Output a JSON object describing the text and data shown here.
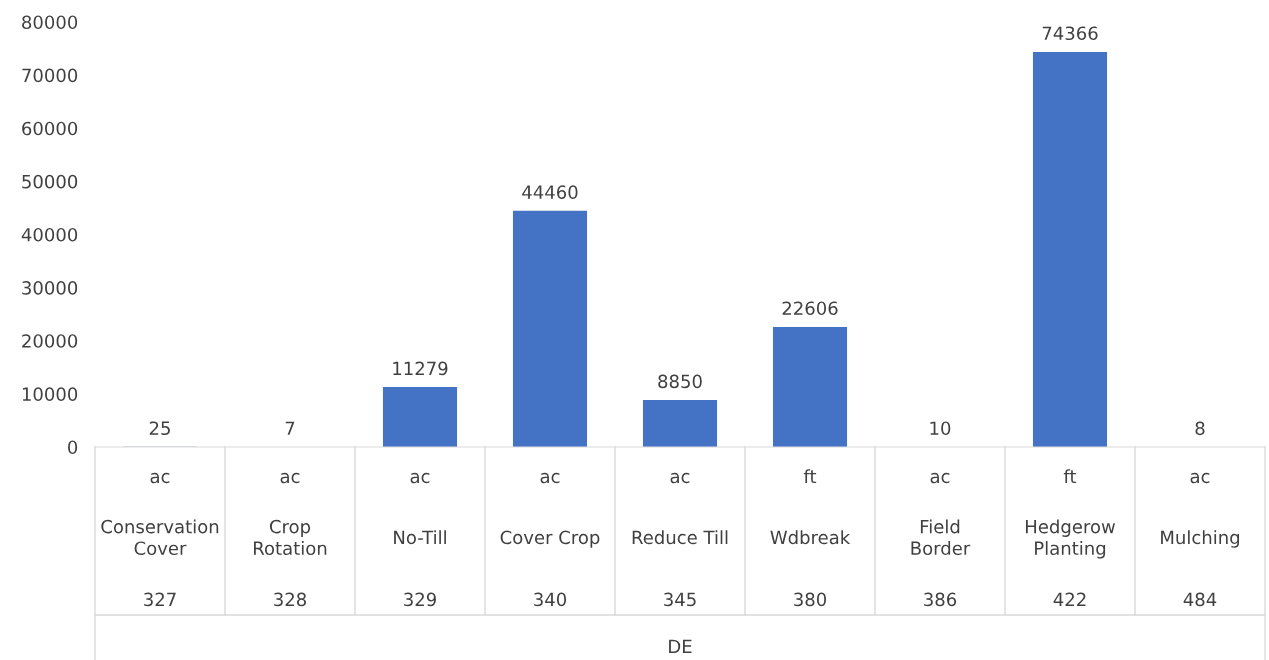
{
  "chart_data": {
    "type": "bar",
    "annotations": [
      "DE"
    ],
    "categories": [
      "ac\nConservation Cover\n327",
      "ac\nCrop Rotation\n328",
      "ac\nNo-Till\n329",
      "ac\nCover Crop\n340",
      "ac\nReduce Till\n345",
      "ft\nWdbreak\n380",
      "ac\nField Border\n386",
      "ft\nHedgerow Planting\n422",
      "ac\nMulching\n484"
    ],
    "values": [
      25,
      7,
      11279,
      44460,
      8850,
      22606,
      10,
      74366,
      8
    ],
    "color": "#4472c4",
    "ylim": [
      0,
      80000
    ],
    "yticks": [
      0,
      10000,
      20000,
      30000,
      40000,
      50000,
      60000,
      70000,
      80000
    ],
    "grid": false,
    "data_labels": true
  }
}
